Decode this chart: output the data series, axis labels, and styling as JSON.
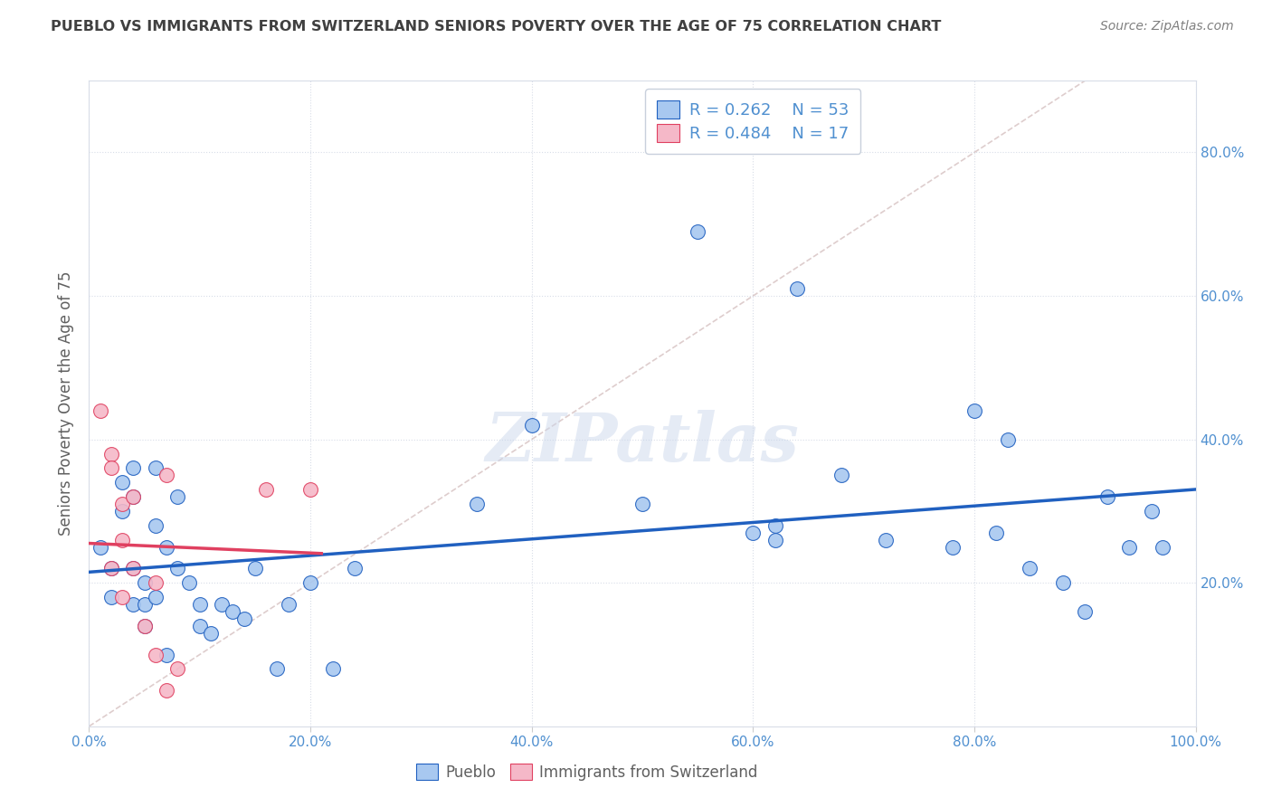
{
  "title": "PUEBLO VS IMMIGRANTS FROM SWITZERLAND SENIORS POVERTY OVER THE AGE OF 75 CORRELATION CHART",
  "source_text": "Source: ZipAtlas.com",
  "ylabel": "Seniors Poverty Over the Age of 75",
  "watermark": "ZIPatlas",
  "xlim": [
    0,
    1.0
  ],
  "ylim": [
    0,
    0.9
  ],
  "xticks": [
    0.0,
    0.2,
    0.4,
    0.6,
    0.8,
    1.0
  ],
  "yticks_right": [
    0.2,
    0.4,
    0.6,
    0.8
  ],
  "xticklabels": [
    "0.0%",
    "20.0%",
    "40.0%",
    "60.0%",
    "80.0%",
    "100.0%"
  ],
  "yticklabels_right": [
    "20.0%",
    "40.0%",
    "60.0%",
    "80.0%"
  ],
  "blue_scatter_x": [
    0.01,
    0.02,
    0.02,
    0.03,
    0.03,
    0.04,
    0.04,
    0.04,
    0.04,
    0.05,
    0.05,
    0.05,
    0.06,
    0.06,
    0.06,
    0.07,
    0.07,
    0.08,
    0.08,
    0.09,
    0.1,
    0.1,
    0.11,
    0.12,
    0.13,
    0.14,
    0.15,
    0.17,
    0.18,
    0.2,
    0.22,
    0.24,
    0.35,
    0.4,
    0.5,
    0.55,
    0.6,
    0.62,
    0.62,
    0.64,
    0.68,
    0.72,
    0.78,
    0.8,
    0.82,
    0.83,
    0.85,
    0.88,
    0.9,
    0.92,
    0.94,
    0.96,
    0.97
  ],
  "blue_scatter_y": [
    0.25,
    0.22,
    0.18,
    0.34,
    0.3,
    0.36,
    0.32,
    0.22,
    0.17,
    0.2,
    0.17,
    0.14,
    0.36,
    0.28,
    0.18,
    0.25,
    0.1,
    0.32,
    0.22,
    0.2,
    0.14,
    0.17,
    0.13,
    0.17,
    0.16,
    0.15,
    0.22,
    0.08,
    0.17,
    0.2,
    0.08,
    0.22,
    0.31,
    0.42,
    0.31,
    0.69,
    0.27,
    0.28,
    0.26,
    0.61,
    0.35,
    0.26,
    0.25,
    0.44,
    0.27,
    0.4,
    0.22,
    0.2,
    0.16,
    0.32,
    0.25,
    0.3,
    0.25
  ],
  "pink_scatter_x": [
    0.01,
    0.02,
    0.02,
    0.02,
    0.03,
    0.03,
    0.03,
    0.04,
    0.04,
    0.05,
    0.06,
    0.06,
    0.07,
    0.07,
    0.08,
    0.16,
    0.2
  ],
  "pink_scatter_y": [
    0.44,
    0.38,
    0.36,
    0.22,
    0.31,
    0.26,
    0.18,
    0.32,
    0.22,
    0.14,
    0.2,
    0.1,
    0.35,
    0.05,
    0.08,
    0.33,
    0.33
  ],
  "blue_color": "#a8c8f0",
  "pink_color": "#f5b8c8",
  "blue_line_color": "#2060c0",
  "pink_line_color": "#e04060",
  "diag_color": "#d0b8b8",
  "title_color": "#404040",
  "source_color": "#808080",
  "axis_label_color": "#606060",
  "tick_color": "#5090d0",
  "legend_text_color": "#5090d0",
  "grid_color": "#d8dde8",
  "background_color": "#ffffff"
}
